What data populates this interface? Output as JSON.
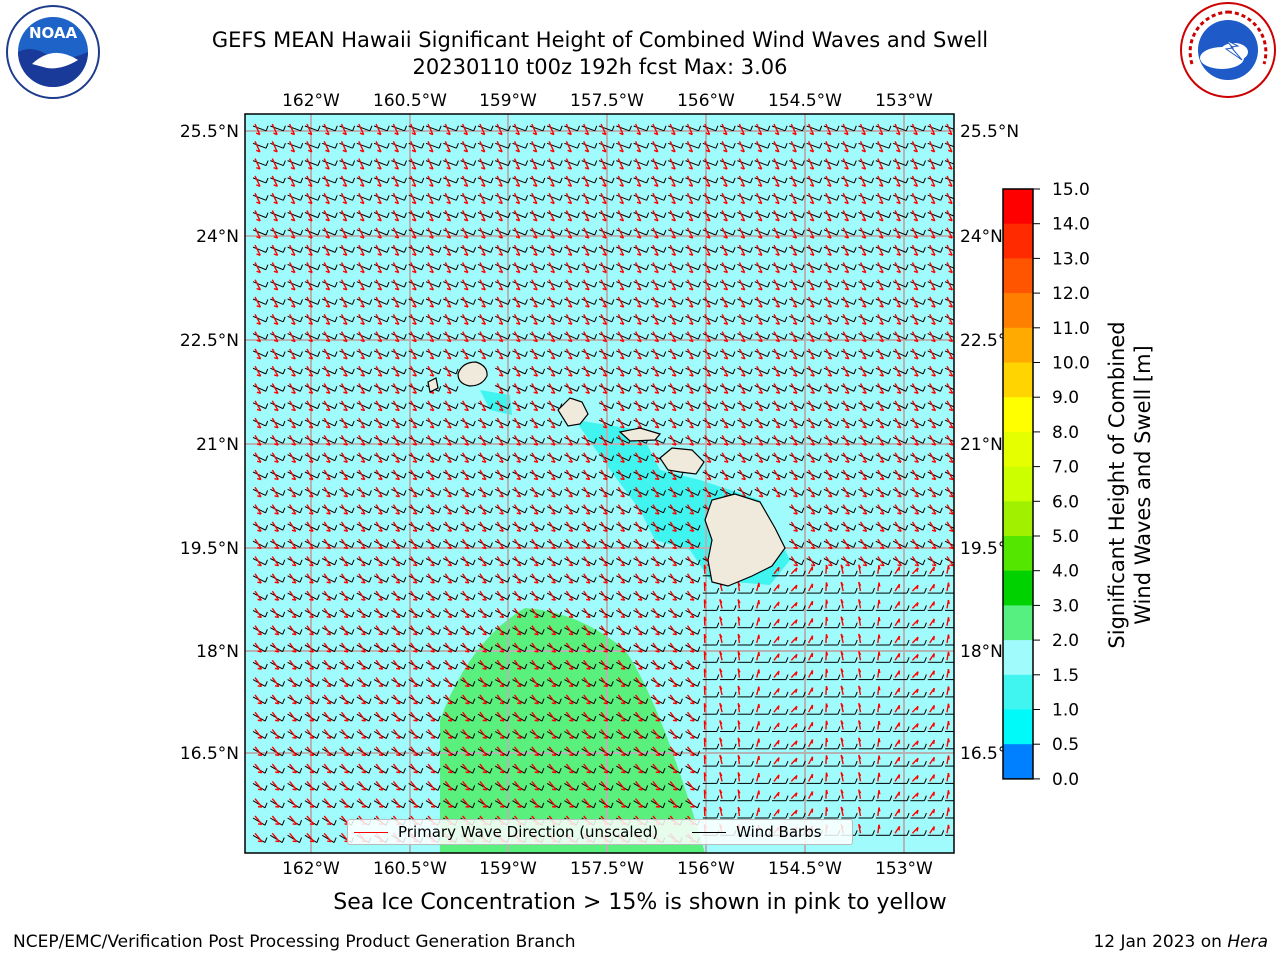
{
  "header": {
    "title_line1": "GEFS MEAN Hawaii Significant Height of Combined Wind Waves and Swell",
    "title_line2": "20230110 t00z 192h fcst   Max: 3.06"
  },
  "logos": {
    "noaa": {
      "text": "NOAA",
      "ring_text": "NATIONAL OCEANIC AND ATMOSPHERIC ADMINISTRATION · U.S. DEPARTMENT OF COMMERCE"
    },
    "nws": {
      "ring_text": "NATIONAL WEATHER SERVICE"
    }
  },
  "map": {
    "lon_labels": [
      "162°W",
      "160.5°W",
      "159°W",
      "157.5°W",
      "156°W",
      "154.5°W",
      "153°W"
    ],
    "lat_labels": [
      "25.5°N",
      "24°N",
      "22.5°N",
      "21°N",
      "19.5°N",
      "18°N",
      "16.5°N"
    ],
    "field_range_m": [
      0,
      3.06
    ],
    "colors": {
      "ocean": "#a0fcfc",
      "high_swell": "#5af07d",
      "medium_swell": "#40f5f0",
      "land": "#efeadc",
      "wave_dir": "#ff0000",
      "barbs": "#000000"
    }
  },
  "legend": {
    "wave_direction": "Primary Wave Direction (unscaled)",
    "wind_barbs": "Wind Barbs"
  },
  "colorbar": {
    "label_line1": "Significant Height of Combined",
    "label_line2": "Wind Waves and Swell [m]",
    "ticks": [
      "15.0",
      "14.0",
      "13.0",
      "12.0",
      "11.0",
      "10.0",
      "9.0",
      "8.0",
      "7.0",
      "6.0",
      "5.0",
      "4.0",
      "3.0",
      "2.0",
      "1.5",
      "1.0",
      "0.5",
      "0.0"
    ],
    "colors": [
      "#ff0000",
      "#ff2a00",
      "#ff5500",
      "#ff8000",
      "#ffaa00",
      "#ffd400",
      "#ffff00",
      "#e6ff00",
      "#ccff00",
      "#a0f000",
      "#55e600",
      "#00d200",
      "#55f080",
      "#a0fcfc",
      "#40f5f0",
      "#00fafa",
      "#0080ff",
      "#0000ff"
    ]
  },
  "footer": {
    "sea_ice_note": "Sea Ice Concentration > 15% is shown in pink to yellow",
    "org": "NCEP/EMC/Verification Post Processing Product Generation Branch",
    "date_prefix": "12 Jan 2023 on ",
    "machine": "Hera"
  }
}
